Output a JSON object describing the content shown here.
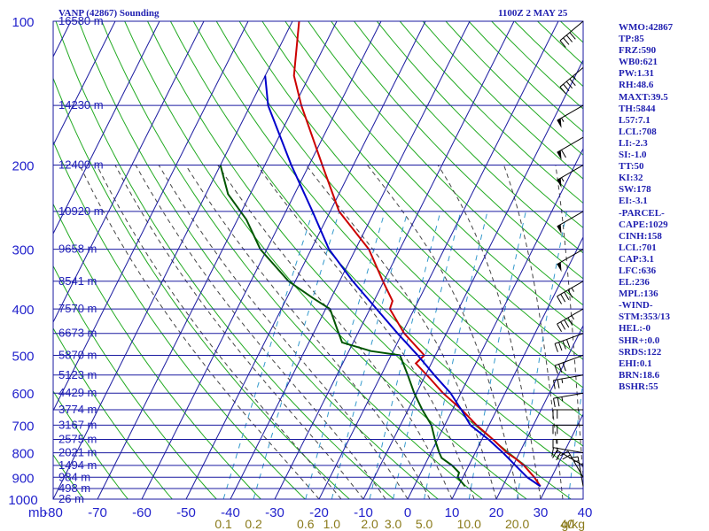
{
  "header": {
    "title": "VANP (42867) Sounding",
    "time": "1100Z  2 MAY 25"
  },
  "indices": [
    "WMO:42867",
    "TP:85",
    "FRZ:590",
    "WB0:621",
    "PW:1.31",
    "RH:48.6",
    "MAXT:39.5",
    "TH:5844",
    "L57:7.1",
    "LCL:708",
    "LI:-2.3",
    "SI:-1.0",
    "TT:50",
    "KI:32",
    "SW:178",
    "EI:-3.1",
    "-PARCEL-",
    "CAPE:1029",
    "CINH:158",
    "LCL:701",
    "CAP:3.1",
    "LFC:636",
    "EL:236",
    "MPL:136",
    "-WIND-",
    "STM:353/13",
    "HEL:-0",
    "SHR+:0.0",
    "SRDS:122",
    "EHI:0.1",
    "BRN:18.6",
    "BSHR:55"
  ],
  "colors": {
    "background": "#ffffff",
    "grid": "#1a1aa0",
    "dry_adiabat": "#22aa22",
    "moist_adiabat": "#444444",
    "mixing_ratio": "#3399cc",
    "temperature": "#cc0000",
    "dewpoint": "#005500",
    "parcel": "#0000cc",
    "wind_barb": "#000000"
  },
  "chart_data": {
    "type": "line",
    "diagram": "skew-T log-P",
    "pressure_axis_label": "mb",
    "pressure_levels": [
      100,
      200,
      300,
      400,
      500,
      600,
      700,
      800,
      900,
      1000
    ],
    "pressure_range": [
      100,
      1000
    ],
    "temperature_ticks": [
      -80,
      -70,
      -60,
      -50,
      -40,
      -30,
      -20,
      -10,
      0,
      10,
      20,
      30,
      40
    ],
    "temperature_range": [
      -80,
      40
    ],
    "mixing_ratio_labels": [
      "0.1",
      "0.2",
      "0.6",
      "1.0",
      "2.0",
      "3.0",
      "5.0",
      "10.0",
      "20.0",
      "40"
    ],
    "mixing_ratio_unit": "g/kg",
    "height_labels": [
      {
        "p": 100,
        "text": "16580 m"
      },
      {
        "p": 150,
        "text": "14230 m"
      },
      {
        "p": 200,
        "text": "12400 m"
      },
      {
        "p": 250,
        "text": "10920 m"
      },
      {
        "p": 300,
        "text": "9658 m"
      },
      {
        "p": 350,
        "text": "8541 m"
      },
      {
        "p": 400,
        "text": "7570 m"
      },
      {
        "p": 450,
        "text": "6673 m"
      },
      {
        "p": 500,
        "text": "5870 m"
      },
      {
        "p": 550,
        "text": "5123 m"
      },
      {
        "p": 600,
        "text": "4429 m"
      },
      {
        "p": 650,
        "text": "3774 m"
      },
      {
        "p": 700,
        "text": "3167 m"
      },
      {
        "p": 750,
        "text": "2575 m"
      },
      {
        "p": 800,
        "text": "2021 m"
      },
      {
        "p": 850,
        "text": "1494 m"
      },
      {
        "p": 900,
        "text": "984 m"
      },
      {
        "p": 950,
        "text": "498 m"
      },
      {
        "p": 1000,
        "text": "26 m"
      }
    ],
    "series": [
      {
        "key": "temperature",
        "points": [
          [
            940,
            28.5
          ],
          [
            900,
            26.1
          ],
          [
            850,
            22.4
          ],
          [
            820,
            19.5
          ],
          [
            800,
            17.2
          ],
          [
            750,
            12.5
          ],
          [
            700,
            7.2
          ],
          [
            650,
            2.1
          ],
          [
            600,
            -4.0
          ],
          [
            560,
            -8.5
          ],
          [
            520,
            -13.5
          ],
          [
            500,
            -12.5
          ],
          [
            450,
            -19.5
          ],
          [
            400,
            -25.5
          ],
          [
            385,
            -25.8
          ],
          [
            350,
            -30.2
          ],
          [
            300,
            -37.0
          ],
          [
            250,
            -48.0
          ],
          [
            200,
            -57.0
          ],
          [
            150,
            -68.5
          ],
          [
            130,
            -73.5
          ],
          [
            100,
            -78.5
          ]
        ]
      },
      {
        "key": "dewpoint",
        "points": [
          [
            940,
            11.5
          ],
          [
            900,
            8.8
          ],
          [
            880,
            8.6
          ],
          [
            850,
            6.2
          ],
          [
            820,
            3.0
          ],
          [
            800,
            1.9
          ],
          [
            750,
            -0.6
          ],
          [
            700,
            -3.0
          ],
          [
            650,
            -6.8
          ],
          [
            600,
            -10.5
          ],
          [
            550,
            -14.0
          ],
          [
            500,
            -18.0
          ],
          [
            490,
            -25.0
          ],
          [
            470,
            -32.5
          ],
          [
            440,
            -35.2
          ],
          [
            400,
            -39.0
          ],
          [
            380,
            -44.0
          ],
          [
            350,
            -51.5
          ],
          [
            300,
            -61.5
          ],
          [
            260,
            -68.0
          ],
          [
            230,
            -75.0
          ],
          [
            200,
            -80.0
          ]
        ]
      },
      {
        "key": "parcel",
        "points": [
          [
            940,
            28.5
          ],
          [
            900,
            24.5
          ],
          [
            850,
            20.5
          ],
          [
            800,
            16.3
          ],
          [
            750,
            11.5
          ],
          [
            700,
            5.8
          ],
          [
            650,
            2.0
          ],
          [
            600,
            -2.3
          ],
          [
            550,
            -8.0
          ],
          [
            500,
            -14.0
          ],
          [
            450,
            -21.0
          ],
          [
            400,
            -28.5
          ],
          [
            350,
            -37.0
          ],
          [
            300,
            -46.0
          ],
          [
            250,
            -54.0
          ],
          [
            200,
            -64.0
          ],
          [
            150,
            -76.0
          ],
          [
            130,
            -80.0
          ]
        ]
      }
    ],
    "wind_barbs": [
      {
        "p": 940,
        "dir": 350,
        "kt": 15
      },
      {
        "p": 900,
        "dir": 330,
        "kt": 20
      },
      {
        "p": 850,
        "dir": 300,
        "kt": 20
      },
      {
        "p": 800,
        "dir": 280,
        "kt": 15
      },
      {
        "p": 750,
        "dir": 270,
        "kt": 15
      },
      {
        "p": 700,
        "dir": 270,
        "kt": 20
      },
      {
        "p": 650,
        "dir": 270,
        "kt": 20
      },
      {
        "p": 600,
        "dir": 260,
        "kt": 25
      },
      {
        "p": 550,
        "dir": 260,
        "kt": 25
      },
      {
        "p": 500,
        "dir": 250,
        "kt": 30
      },
      {
        "p": 450,
        "dir": 250,
        "kt": 40
      },
      {
        "p": 400,
        "dir": 240,
        "kt": 45
      },
      {
        "p": 350,
        "dir": 240,
        "kt": 45
      },
      {
        "p": 300,
        "dir": 240,
        "kt": 50
      },
      {
        "p": 250,
        "dir": 240,
        "kt": 50
      },
      {
        "p": 200,
        "dir": 240,
        "kt": 55
      },
      {
        "p": 175,
        "dir": 240,
        "kt": 60
      },
      {
        "p": 150,
        "dir": 240,
        "kt": 55
      },
      {
        "p": 125,
        "dir": 230,
        "kt": 45
      },
      {
        "p": 100,
        "dir": 230,
        "kt": 40
      }
    ]
  }
}
